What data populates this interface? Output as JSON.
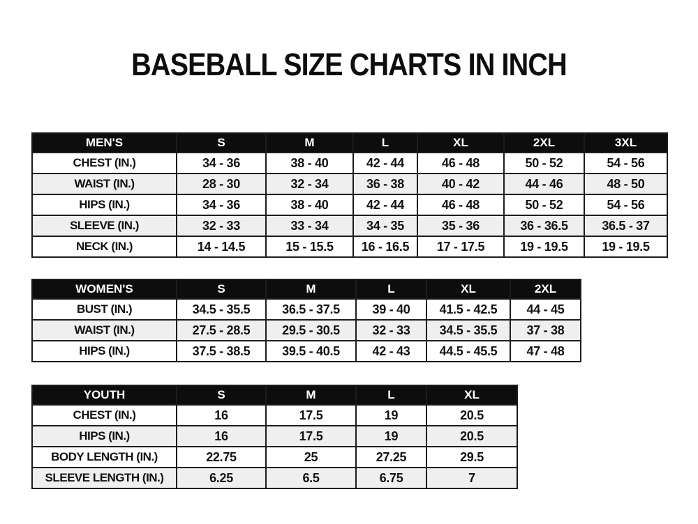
{
  "page": {
    "title": "BASEBALL SIZE CHARTS IN INCH"
  },
  "colors": {
    "header_bg": "#0d0d0d",
    "header_text": "#ffffff",
    "row_alt_bg": "#efefef",
    "border": "#1c1c1c",
    "text": "#121212",
    "page_bg": "#ffffff"
  },
  "tables": [
    {
      "name": "MEN'S",
      "columns": [
        "S",
        "M",
        "L",
        "XL",
        "2XL",
        "3XL"
      ],
      "rows": [
        {
          "label": "CHEST (IN.)",
          "values": [
            "34 - 36",
            "38 - 40",
            "42 - 44",
            "46 - 48",
            "50 - 52",
            "54 - 56"
          ]
        },
        {
          "label": "WAIST (IN.)",
          "values": [
            "28 - 30",
            "32 - 34",
            "36 - 38",
            "40 - 42",
            "44 - 46",
            "48 - 50"
          ]
        },
        {
          "label": "HIPS (IN.)",
          "values": [
            "34 - 36",
            "38 - 40",
            "42 - 44",
            "46 - 48",
            "50 - 52",
            "54 - 56"
          ]
        },
        {
          "label": "SLEEVE (IN.)",
          "values": [
            "32 - 33",
            "33 - 34",
            "34 - 35",
            "35 - 36",
            "36 - 36.5",
            "36.5 - 37"
          ]
        },
        {
          "label": "NECK (IN.)",
          "values": [
            "14 - 14.5",
            "15 - 15.5",
            "16 - 16.5",
            "17 - 17.5",
            "19 - 19.5",
            "19 - 19.5"
          ]
        }
      ]
    },
    {
      "name": "WOMEN'S",
      "columns": [
        "S",
        "M",
        "L",
        "XL",
        "2XL"
      ],
      "rows": [
        {
          "label": "BUST (IN.)",
          "values": [
            "34.5 - 35.5",
            "36.5 - 37.5",
            "39 - 40",
            "41.5 - 42.5",
            "44 - 45"
          ]
        },
        {
          "label": "WAIST (IN.)",
          "values": [
            "27.5 - 28.5",
            "29.5 - 30.5",
            "32 - 33",
            "34.5 - 35.5",
            "37 - 38"
          ]
        },
        {
          "label": "HIPS (IN.)",
          "values": [
            "37.5 - 38.5",
            "39.5 - 40.5",
            "42 - 43",
            "44.5 - 45.5",
            "47 - 48"
          ]
        }
      ]
    },
    {
      "name": "YOUTH",
      "columns": [
        "S",
        "M",
        "L",
        "XL"
      ],
      "rows": [
        {
          "label": "CHEST (IN.)",
          "values": [
            "16",
            "17.5",
            "19",
            "20.5"
          ]
        },
        {
          "label": "HIPS (IN.)",
          "values": [
            "16",
            "17.5",
            "19",
            "20.5"
          ]
        },
        {
          "label": "BODY LENGTH (IN.)",
          "values": [
            "22.75",
            "25",
            "27.25",
            "29.5"
          ]
        },
        {
          "label": "SLEEVE LENGTH (IN.)",
          "values": [
            "6.25",
            "6.5",
            "6.75",
            "7"
          ]
        }
      ]
    }
  ]
}
